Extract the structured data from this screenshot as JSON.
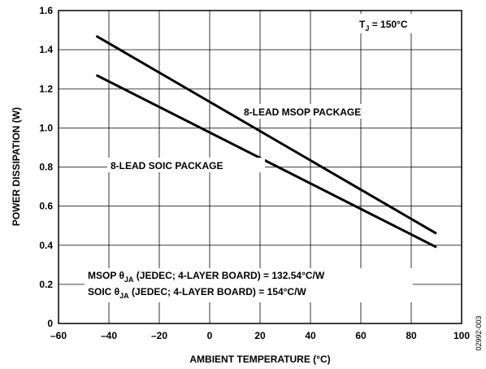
{
  "chart_data": {
    "type": "line",
    "xlabel": "AMBIENT TEMPERATURE (°C)",
    "ylabel": "POWER DISSIPATION (W)",
    "xlim": [
      -60,
      100
    ],
    "ylim": [
      0,
      1.6
    ],
    "x_ticks": [
      "–60",
      "–40",
      "–20",
      "0",
      "20",
      "40",
      "60",
      "80",
      "100"
    ],
    "y_ticks": [
      "0",
      "0.2",
      "0.4",
      "0.6",
      "0.8",
      "1.0",
      "1.2",
      "1.4",
      "1.6"
    ],
    "grid": true,
    "series": [
      {
        "name": "8-LEAD MSOP PACKAGE",
        "x": [
          -45,
          90
        ],
        "y": [
          1.47,
          0.46
        ]
      },
      {
        "name": "8-LEAD SOIC PACKAGE",
        "x": [
          -45,
          90
        ],
        "y": [
          1.27,
          0.39
        ]
      }
    ],
    "condition": {
      "main": "T",
      "sub": "J",
      "rest": " = 150°C"
    },
    "notes": [
      {
        "pre": "MSOP θ",
        "sub": "JA",
        "post": " (JEDEC; 4-LAYER BOARD) = 132.54°C/W"
      },
      {
        "pre": "SOIC θ",
        "sub": "JA",
        "post": " (JEDEC; 4-LAYER BOARD) = 154°C/W"
      }
    ],
    "figure_code": "02992-003"
  }
}
